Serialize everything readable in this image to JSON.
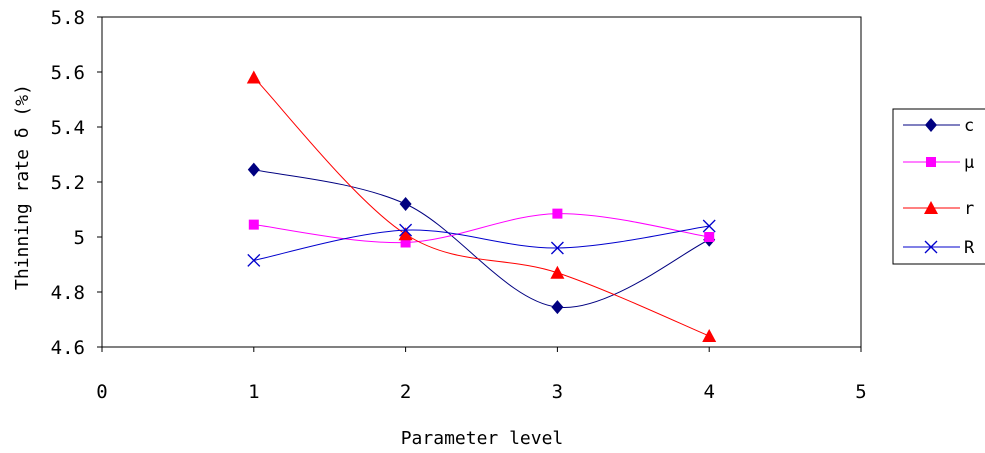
{
  "chart_data": {
    "type": "line",
    "smooth": true,
    "xlabel": "Parameter level",
    "ylabel": "Thinning rate  δ (%)",
    "xlim": [
      0,
      5
    ],
    "ylim": [
      4.6,
      5.8
    ],
    "xticks": [
      "0",
      "1",
      "2",
      "3",
      "4",
      "5"
    ],
    "yticks": [
      "4.6",
      "4.8",
      "5",
      "5.2",
      "5.4",
      "5.6",
      "5.8"
    ],
    "x": [
      1,
      2,
      3,
      4
    ],
    "grid": false,
    "legend_position": "right",
    "series": [
      {
        "name": "c",
        "values": [
          5.245,
          5.12,
          4.745,
          4.99
        ],
        "color": "#000080",
        "marker": "diamond"
      },
      {
        "name": "μ",
        "values": [
          5.045,
          4.98,
          5.085,
          5.0
        ],
        "color": "#ff00ff",
        "marker": "square"
      },
      {
        "name": "r",
        "values": [
          5.58,
          5.01,
          4.87,
          4.64
        ],
        "color": "#ff0000",
        "marker": "triangle"
      },
      {
        "name": "R",
        "values": [
          4.915,
          5.025,
          4.96,
          5.04
        ],
        "color": "#0000cd",
        "marker": "x"
      }
    ]
  }
}
